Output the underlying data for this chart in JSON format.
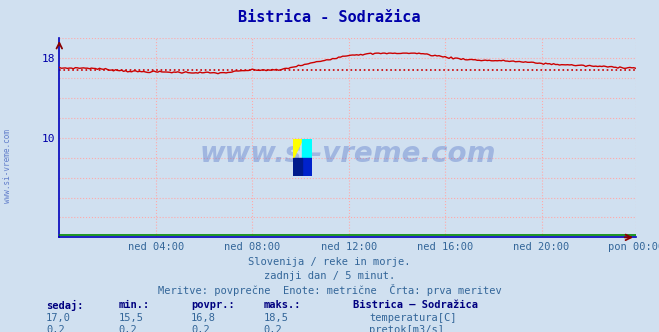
{
  "title": "Bistrica - Sodražica",
  "title_color": "#0000aa",
  "title_fontsize": 11,
  "background_color": "#d0e0f0",
  "plot_bg_color": "#d0e0f0",
  "grid_color": "#ffaaaa",
  "grid_style": ":",
  "ylim": [
    0,
    20
  ],
  "ytick_vals": [
    10,
    18
  ],
  "ylabel_color": "#0000aa",
  "xtick_labels": [
    "ned 04:00",
    "ned 08:00",
    "ned 12:00",
    "ned 16:00",
    "ned 20:00",
    "pon 00:00"
  ],
  "n_points": 288,
  "temp_color": "#cc0000",
  "temp_avg_value": 16.8,
  "temp_min": 15.5,
  "temp_max": 18.5,
  "temp_current": 17.0,
  "flow_color": "#008800",
  "flow_value": 0.2,
  "avg_line_color": "#cc0000",
  "spine_color": "#0000bb",
  "watermark_text": "www.si-vreme.com",
  "watermark_color": "#3355bb",
  "watermark_alpha": 0.3,
  "side_label": "www.si-vreme.com",
  "side_label_color": "#3355bb",
  "subtitle1": "Slovenija / reke in morje.",
  "subtitle2": "zadnji dan / 5 minut.",
  "subtitle3": "Meritve: povprečne  Enote: metrične  Črta: prva meritev",
  "subtitle_color": "#336699",
  "legend_title": "Bistrica – Sodražica",
  "legend_title_color": "#000080",
  "legend_items": [
    {
      "label": "temperatura[C]",
      "color": "#cc0000"
    },
    {
      "label": "pretok[m3/s]",
      "color": "#008800"
    }
  ],
  "stats_labels": [
    "sedaj:",
    "min.:",
    "povpr.:",
    "maks.:"
  ],
  "stats_temp": [
    "17,0",
    "15,5",
    "16,8",
    "18,5"
  ],
  "stats_flow": [
    "0,2",
    "0,2",
    "0,2",
    "0,2"
  ]
}
